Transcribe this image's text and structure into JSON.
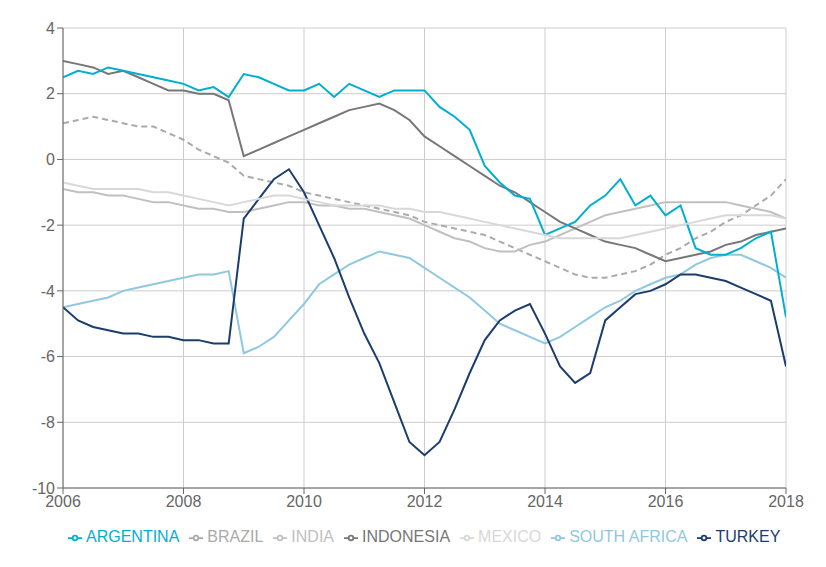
{
  "chart_data": {
    "type": "line",
    "x": [
      2006.0,
      2006.25,
      2006.5,
      2006.75,
      2007.0,
      2007.25,
      2007.5,
      2007.75,
      2008.0,
      2008.25,
      2008.5,
      2008.75,
      2009.0,
      2009.25,
      2009.5,
      2009.75,
      2010.0,
      2010.25,
      2010.5,
      2010.75,
      2011.0,
      2011.25,
      2011.5,
      2011.75,
      2012.0,
      2012.25,
      2012.5,
      2012.75,
      2013.0,
      2013.25,
      2013.5,
      2013.75,
      2014.0,
      2014.25,
      2014.5,
      2014.75,
      2015.0,
      2015.25,
      2015.5,
      2015.75,
      2016.0,
      2016.25,
      2016.5,
      2016.75,
      2017.0,
      2017.25,
      2017.5,
      2017.75,
      2018.0
    ],
    "xlim": [
      2006,
      2018
    ],
    "xticks": [
      2006,
      2008,
      2010,
      2012,
      2014,
      2016,
      2018
    ],
    "ylim": [
      -10,
      4
    ],
    "yticks": [
      -10,
      -8,
      -6,
      -4,
      -2,
      0,
      2,
      4
    ],
    "grid": true,
    "legend": "bottom",
    "series": [
      {
        "name": "BRAZIL",
        "color": "#aaaaaa",
        "line_style": "dashed",
        "values": [
          1.1,
          1.2,
          1.3,
          1.2,
          1.1,
          1.0,
          1.0,
          0.8,
          0.6,
          0.3,
          0.1,
          -0.1,
          -0.5,
          -0.6,
          -0.7,
          -0.8,
          -1.0,
          -1.1,
          -1.2,
          -1.3,
          -1.4,
          -1.5,
          -1.6,
          -1.7,
          -1.9,
          -2.0,
          -2.1,
          -2.2,
          -2.3,
          -2.5,
          -2.7,
          -2.9,
          -3.1,
          -3.3,
          -3.5,
          -3.6,
          -3.6,
          -3.5,
          -3.4,
          -3.2,
          -2.9,
          -2.7,
          -2.4,
          -2.2,
          -1.9,
          -1.7,
          -1.4,
          -1.1,
          -0.6
        ]
      },
      {
        "name": "INDIA",
        "color": "#c0c0c0",
        "line_style": "solid",
        "values": [
          -0.9,
          -1.0,
          -1.0,
          -1.1,
          -1.1,
          -1.2,
          -1.3,
          -1.3,
          -1.4,
          -1.5,
          -1.5,
          -1.6,
          -1.6,
          -1.5,
          -1.4,
          -1.3,
          -1.3,
          -1.4,
          -1.4,
          -1.5,
          -1.5,
          -1.6,
          -1.7,
          -1.8,
          -2.0,
          -2.2,
          -2.4,
          -2.5,
          -2.7,
          -2.8,
          -2.8,
          -2.6,
          -2.5,
          -2.3,
          -2.1,
          -1.9,
          -1.7,
          -1.6,
          -1.5,
          -1.4,
          -1.3,
          -1.3,
          -1.3,
          -1.3,
          -1.3,
          -1.4,
          -1.5,
          -1.6,
          -1.8
        ]
      },
      {
        "name": "INDONESIA",
        "color": "#777777",
        "line_style": "solid",
        "values": [
          3.0,
          2.9,
          2.8,
          2.6,
          2.7,
          2.5,
          2.3,
          2.1,
          2.1,
          2.0,
          2.0,
          1.8,
          0.1,
          0.3,
          0.5,
          0.7,
          0.9,
          1.1,
          1.3,
          1.5,
          1.6,
          1.7,
          1.5,
          1.2,
          0.7,
          0.4,
          0.1,
          -0.2,
          -0.5,
          -0.8,
          -1.0,
          -1.3,
          -1.6,
          -1.9,
          -2.1,
          -2.3,
          -2.5,
          -2.6,
          -2.7,
          -2.9,
          -3.1,
          -3.0,
          -2.9,
          -2.8,
          -2.6,
          -2.5,
          -2.3,
          -2.2,
          -2.1
        ]
      },
      {
        "name": "SOUTH AFRICA",
        "color": "#90c8e0",
        "line_style": "solid",
        "values": [
          -4.5,
          -4.4,
          -4.3,
          -4.2,
          -4.0,
          -3.9,
          -3.8,
          -3.7,
          -3.6,
          -3.5,
          -3.5,
          -3.4,
          -5.9,
          -5.7,
          -5.4,
          -4.9,
          -4.4,
          -3.8,
          -3.5,
          -3.2,
          -3.0,
          -2.8,
          -2.9,
          -3.0,
          -3.3,
          -3.6,
          -3.9,
          -4.2,
          -4.6,
          -5.0,
          -5.2,
          -5.4,
          -5.6,
          -5.4,
          -5.1,
          -4.8,
          -4.5,
          -4.3,
          -4.0,
          -3.8,
          -3.6,
          -3.5,
          -3.2,
          -3.0,
          -2.9,
          -2.9,
          -3.1,
          -3.3,
          -3.6
        ]
      },
      {
        "name": "TURKEY",
        "color": "#1b3d6e",
        "line_style": "solid",
        "values": [
          -4.5,
          -4.9,
          -5.1,
          -5.2,
          -5.3,
          -5.3,
          -5.4,
          -5.4,
          -5.5,
          -5.5,
          -5.6,
          -5.6,
          -1.8,
          -1.2,
          -0.6,
          -0.3,
          -1.0,
          -2.0,
          -3.0,
          -4.2,
          -5.3,
          -6.2,
          -7.4,
          -8.6,
          -9.0,
          -8.6,
          -7.6,
          -6.5,
          -5.5,
          -4.9,
          -4.6,
          -4.4,
          -5.3,
          -6.3,
          -6.8,
          -6.5,
          -4.9,
          -4.5,
          -4.1,
          -4.0,
          -3.8,
          -3.5,
          -3.5,
          -3.6,
          -3.7,
          -3.9,
          -4.1,
          -4.3,
          -6.3
        ]
      },
      {
        "name": "ARGENTINA",
        "color": "#00afd0",
        "line_style": "solid",
        "values": [
          2.5,
          2.7,
          2.6,
          2.8,
          2.7,
          2.6,
          2.5,
          2.4,
          2.3,
          2.1,
          2.2,
          1.9,
          2.6,
          2.5,
          2.3,
          2.1,
          2.1,
          2.3,
          1.9,
          2.3,
          2.1,
          1.9,
          2.1,
          2.1,
          2.1,
          1.6,
          1.3,
          0.9,
          -0.2,
          -0.7,
          -1.1,
          -1.2,
          -2.3,
          -2.1,
          -1.9,
          -1.4,
          -1.1,
          -0.6,
          -1.4,
          -1.1,
          -1.7,
          -1.4,
          -2.7,
          -2.9,
          -2.9,
          -2.7,
          -2.4,
          -2.2,
          -4.8
        ]
      },
      {
        "name": "MEXICO",
        "color": "#d8d8d8",
        "line_style": "solid",
        "values": [
          -0.7,
          -0.8,
          -0.9,
          -0.9,
          -0.9,
          -0.9,
          -1.0,
          -1.0,
          -1.1,
          -1.2,
          -1.3,
          -1.4,
          -1.3,
          -1.2,
          -1.1,
          -1.1,
          -1.2,
          -1.3,
          -1.4,
          -1.4,
          -1.4,
          -1.4,
          -1.5,
          -1.5,
          -1.6,
          -1.6,
          -1.7,
          -1.8,
          -1.9,
          -2.0,
          -2.1,
          -2.2,
          -2.3,
          -2.4,
          -2.4,
          -2.4,
          -2.4,
          -2.4,
          -2.3,
          -2.2,
          -2.1,
          -2.0,
          -1.9,
          -1.8,
          -1.7,
          -1.7,
          -1.7,
          -1.7,
          -1.8
        ]
      }
    ]
  }
}
